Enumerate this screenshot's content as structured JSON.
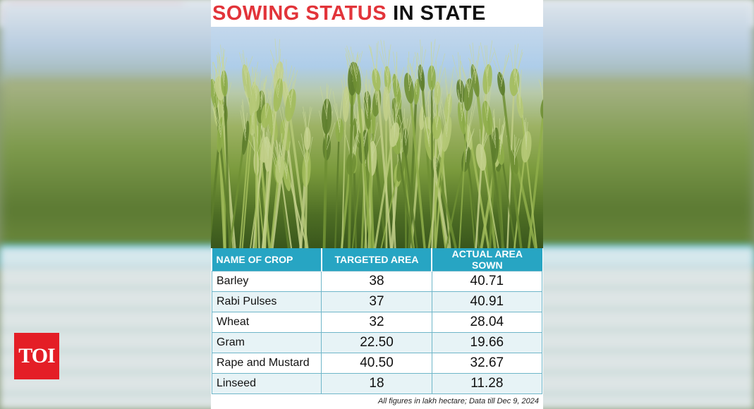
{
  "title": {
    "highlight": "SOWING STATUS",
    "rest": "IN STATE"
  },
  "logo": {
    "text": "TOI"
  },
  "table": {
    "headers": [
      "NAME OF CROP",
      "TARGETED AREA",
      "ACTUAL AREA SOWN"
    ],
    "rows": [
      {
        "crop": "Barley",
        "targeted": "38",
        "actual": "40.71"
      },
      {
        "crop": "Rabi Pulses",
        "targeted": "37",
        "actual": "40.91"
      },
      {
        "crop": "Wheat",
        "targeted": "32",
        "actual": "28.04"
      },
      {
        "crop": "Gram",
        "targeted": "22.50",
        "actual": "19.66"
      },
      {
        "crop": "Rape and Mustard",
        "targeted": "40.50",
        "actual": "32.67"
      },
      {
        "crop": "Linseed",
        "targeted": "18",
        "actual": "11.28"
      }
    ]
  },
  "footnote": "All figures in lakh hectare; Data till Dec 9, 2024",
  "colors": {
    "title_red": "#e2343a",
    "header_blue": "#27a5c3",
    "logo_red": "#e41e26"
  }
}
